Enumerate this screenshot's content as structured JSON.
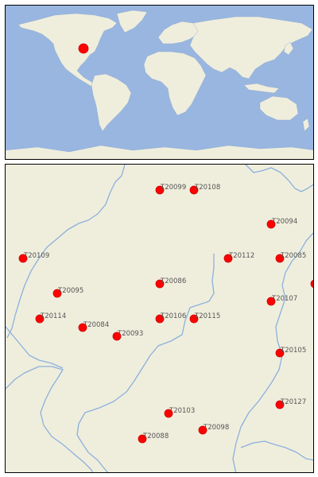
{
  "colors": {
    "ocean": "#99b6e0",
    "land": "#efeedd",
    "river": "#8cb0dc",
    "marker": "#ff0000",
    "marker_edge": "#cc0000",
    "label": "#555555"
  },
  "overview_map": {
    "marker_icon": "red-dot-icon",
    "marker_location": "central United States"
  },
  "stations": [
    {
      "id": "T20099"
    },
    {
      "id": "T20108"
    },
    {
      "id": "T20094"
    },
    {
      "id": "T20109"
    },
    {
      "id": "T20112"
    },
    {
      "id": "T20085"
    },
    {
      "id": "T20086"
    },
    {
      "id": "T20095"
    },
    {
      "id": "T20107"
    },
    {
      "id": "T20114"
    },
    {
      "id": "T20084"
    },
    {
      "id": "T20106"
    },
    {
      "id": "T20115"
    },
    {
      "id": "T20093"
    },
    {
      "id": "T20105"
    },
    {
      "id": "T20103"
    },
    {
      "id": "T20127"
    },
    {
      "id": "T20098"
    },
    {
      "id": "T20088"
    }
  ]
}
